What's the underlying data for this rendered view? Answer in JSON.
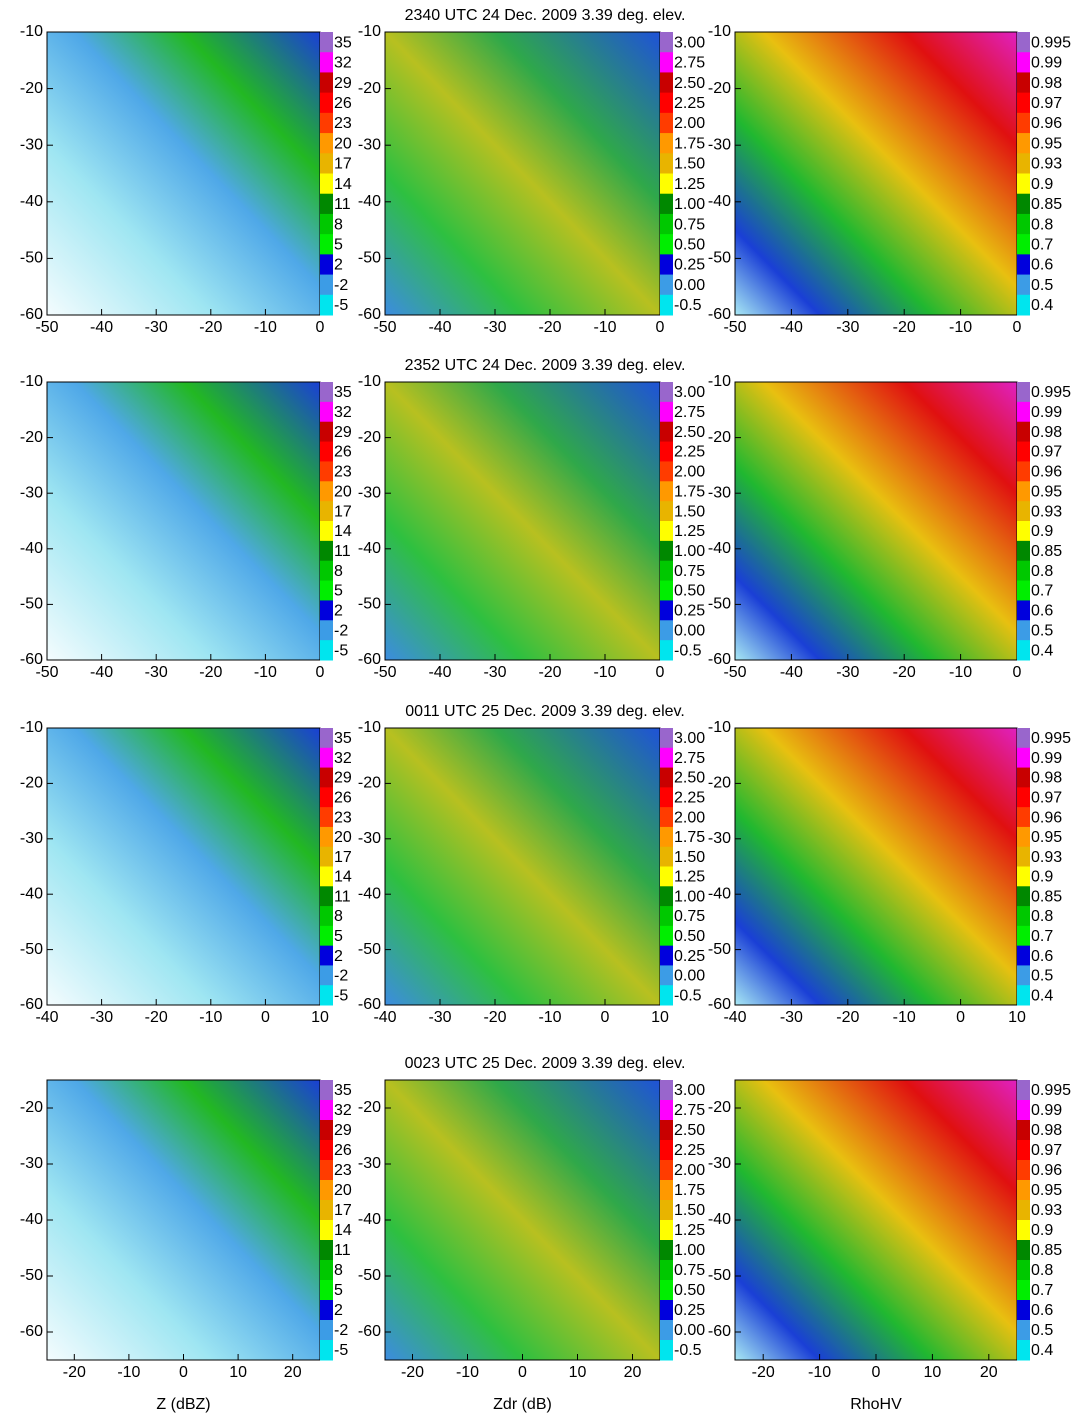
{
  "chart_data": [
    {
      "type": "heatmap",
      "xlim": [
        -50,
        0
      ],
      "xticks": [
        -50,
        -40,
        -30,
        -20,
        -10,
        0
      ],
      "ylim": [
        -60,
        -10
      ],
      "yticks": [
        -60,
        -50,
        -40,
        -30,
        -20,
        -10
      ],
      "colorbar": {
        "ticks": [
          35,
          32,
          29,
          26,
          23,
          20,
          17,
          14,
          11,
          8,
          5,
          2,
          -2,
          -5
        ],
        "colors": [
          "#9966cc",
          "#ff00ff",
          "#c80000",
          "#ff0000",
          "#ff3c00",
          "#ff9900",
          "#e8b400",
          "#ffff00",
          "#008800",
          "#00c800",
          "#00ee00",
          "#0000dd",
          "#3c9ce6",
          "#00e5ee"
        ]
      }
    },
    {
      "type": "heatmap",
      "title": "2340 UTC 24 Dec. 2009 3.39 deg. elev.",
      "xlim": [
        -50,
        0
      ],
      "xticks": [
        -50,
        -40,
        -30,
        -20,
        -10,
        0
      ],
      "ylim": [
        -60,
        -10
      ],
      "yticks": [
        -60,
        -50,
        -40,
        -30,
        -20,
        -10
      ],
      "colorbar": {
        "ticks": [
          {
            "value": 3,
            "label": "3.00"
          },
          2.75,
          {
            "value": 2.5,
            "label": "2.50"
          },
          2.25,
          {
            "value": 2,
            "label": "2.00"
          },
          1.75,
          {
            "value": 1.5,
            "label": "1.50"
          },
          1.25,
          {
            "value": 1,
            "label": "1.00"
          },
          0.75,
          {
            "value": 0.5,
            "label": "0.50"
          },
          0.25,
          {
            "value": 0,
            "label": "0.00"
          },
          -0.5
        ],
        "colors": [
          "#9966cc",
          "#ff00ff",
          "#c80000",
          "#ff0000",
          "#ff3c00",
          "#ff9900",
          "#e8b400",
          "#ffff00",
          "#008800",
          "#00c800",
          "#00ee00",
          "#0000dd",
          "#3c9ce6",
          "#00e5ee"
        ]
      }
    },
    {
      "type": "heatmap",
      "xlim": [
        -50,
        0
      ],
      "xticks": [
        -50,
        -40,
        -30,
        -20,
        -10,
        0
      ],
      "ylim": [
        -60,
        -10
      ],
      "yticks": [
        -60,
        -50,
        -40,
        -30,
        -20,
        -10
      ],
      "colorbar": {
        "ticks": [
          0.995,
          0.99,
          0.98,
          0.97,
          0.96,
          0.95,
          0.93,
          0.9,
          0.85,
          0.8,
          0.7,
          0.6,
          0.5,
          0.4
        ],
        "colors": [
          "#9966cc",
          "#ff00ff",
          "#c80000",
          "#ff0000",
          "#ff3c00",
          "#ff9900",
          "#e8b400",
          "#ffff00",
          "#008800",
          "#00c800",
          "#00ee00",
          "#0000dd",
          "#3c9ce6",
          "#00e5ee"
        ]
      }
    },
    {
      "type": "heatmap",
      "xlim": [
        -50,
        0
      ],
      "xticks": [
        -50,
        -40,
        -30,
        -20,
        -10,
        0
      ],
      "ylim": [
        -60,
        -10
      ],
      "yticks": [
        -60,
        -50,
        -40,
        -30,
        -20,
        -10
      ],
      "colorbar": {
        "ticks": [
          35,
          32,
          29,
          26,
          23,
          20,
          17,
          14,
          11,
          8,
          5,
          2,
          -2,
          -5
        ],
        "colors": [
          "#9966cc",
          "#ff00ff",
          "#c80000",
          "#ff0000",
          "#ff3c00",
          "#ff9900",
          "#e8b400",
          "#ffff00",
          "#008800",
          "#00c800",
          "#00ee00",
          "#0000dd",
          "#3c9ce6",
          "#00e5ee"
        ]
      }
    },
    {
      "type": "heatmap",
      "title": "2352 UTC 24 Dec. 2009 3.39 deg. elev.",
      "xlim": [
        -50,
        0
      ],
      "xticks": [
        -50,
        -40,
        -30,
        -20,
        -10,
        0
      ],
      "ylim": [
        -60,
        -10
      ],
      "yticks": [
        -60,
        -50,
        -40,
        -30,
        -20,
        -10
      ],
      "colorbar": {
        "ticks": [
          {
            "value": 3,
            "label": "3.00"
          },
          2.75,
          {
            "value": 2.5,
            "label": "2.50"
          },
          2.25,
          {
            "value": 2,
            "label": "2.00"
          },
          1.75,
          {
            "value": 1.5,
            "label": "1.50"
          },
          1.25,
          {
            "value": 1,
            "label": "1.00"
          },
          0.75,
          {
            "value": 0.5,
            "label": "0.50"
          },
          0.25,
          {
            "value": 0,
            "label": "0.00"
          },
          -0.5
        ],
        "colors": [
          "#9966cc",
          "#ff00ff",
          "#c80000",
          "#ff0000",
          "#ff3c00",
          "#ff9900",
          "#e8b400",
          "#ffff00",
          "#008800",
          "#00c800",
          "#00ee00",
          "#0000dd",
          "#3c9ce6",
          "#00e5ee"
        ]
      }
    },
    {
      "type": "heatmap",
      "xlim": [
        -50,
        0
      ],
      "xticks": [
        -50,
        -40,
        -30,
        -20,
        -10,
        0
      ],
      "ylim": [
        -60,
        -10
      ],
      "yticks": [
        -60,
        -50,
        -40,
        -30,
        -20,
        -10
      ],
      "colorbar": {
        "ticks": [
          0.995,
          0.99,
          0.98,
          0.97,
          0.96,
          0.95,
          0.93,
          0.9,
          0.85,
          0.8,
          0.7,
          0.6,
          0.5,
          0.4
        ],
        "colors": [
          "#9966cc",
          "#ff00ff",
          "#c80000",
          "#ff0000",
          "#ff3c00",
          "#ff9900",
          "#e8b400",
          "#ffff00",
          "#008800",
          "#00c800",
          "#00ee00",
          "#0000dd",
          "#3c9ce6",
          "#00e5ee"
        ]
      }
    },
    {
      "type": "heatmap",
      "xlim": [
        -40,
        10
      ],
      "xticks": [
        -40,
        -30,
        -20,
        -10,
        0,
        10
      ],
      "ylim": [
        -60,
        -10
      ],
      "yticks": [
        -60,
        -50,
        -40,
        -30,
        -20,
        -10
      ],
      "colorbar": {
        "ticks": [
          35,
          32,
          29,
          26,
          23,
          20,
          17,
          14,
          11,
          8,
          5,
          2,
          -2,
          -5
        ],
        "colors": [
          "#9966cc",
          "#ff00ff",
          "#c80000",
          "#ff0000",
          "#ff3c00",
          "#ff9900",
          "#e8b400",
          "#ffff00",
          "#008800",
          "#00c800",
          "#00ee00",
          "#0000dd",
          "#3c9ce6",
          "#00e5ee"
        ]
      }
    },
    {
      "type": "heatmap",
      "title": "0011 UTC 25 Dec. 2009 3.39 deg. elev.",
      "xlim": [
        -40,
        10
      ],
      "xticks": [
        -40,
        -30,
        -20,
        -10,
        0,
        10
      ],
      "ylim": [
        -60,
        -10
      ],
      "yticks": [
        -60,
        -50,
        -40,
        -30,
        -20,
        -10
      ],
      "colorbar": {
        "ticks": [
          {
            "value": 3,
            "label": "3.00"
          },
          2.75,
          {
            "value": 2.5,
            "label": "2.50"
          },
          2.25,
          {
            "value": 2,
            "label": "2.00"
          },
          1.75,
          {
            "value": 1.5,
            "label": "1.50"
          },
          1.25,
          {
            "value": 1,
            "label": "1.00"
          },
          0.75,
          {
            "value": 0.5,
            "label": "0.50"
          },
          0.25,
          {
            "value": 0,
            "label": "0.00"
          },
          -0.5
        ],
        "colors": [
          "#9966cc",
          "#ff00ff",
          "#c80000",
          "#ff0000",
          "#ff3c00",
          "#ff9900",
          "#e8b400",
          "#ffff00",
          "#008800",
          "#00c800",
          "#00ee00",
          "#0000dd",
          "#3c9ce6",
          "#00e5ee"
        ]
      }
    },
    {
      "type": "heatmap",
      "xlim": [
        -40,
        10
      ],
      "xticks": [
        -40,
        -30,
        -20,
        -10,
        0,
        10
      ],
      "ylim": [
        -60,
        -10
      ],
      "yticks": [
        -60,
        -50,
        -40,
        -30,
        -20,
        -10
      ],
      "colorbar": {
        "ticks": [
          0.995,
          0.99,
          0.98,
          0.97,
          0.96,
          0.95,
          0.93,
          0.9,
          0.85,
          0.8,
          0.7,
          0.6,
          0.5,
          0.4
        ],
        "colors": [
          "#9966cc",
          "#ff00ff",
          "#c80000",
          "#ff0000",
          "#ff3c00",
          "#ff9900",
          "#e8b400",
          "#ffff00",
          "#008800",
          "#00c800",
          "#00ee00",
          "#0000dd",
          "#3c9ce6",
          "#00e5ee"
        ]
      }
    },
    {
      "type": "heatmap",
      "xlabel": "Z (dBZ)",
      "xlim": [
        -25,
        25
      ],
      "xticks": [
        -20,
        -10,
        0,
        10,
        20
      ],
      "ylim": [
        -65,
        -15
      ],
      "yticks": [
        -60,
        -50,
        -40,
        -30,
        -20
      ],
      "colorbar": {
        "ticks": [
          35,
          32,
          29,
          26,
          23,
          20,
          17,
          14,
          11,
          8,
          5,
          2,
          -2,
          -5
        ],
        "colors": [
          "#9966cc",
          "#ff00ff",
          "#c80000",
          "#ff0000",
          "#ff3c00",
          "#ff9900",
          "#e8b400",
          "#ffff00",
          "#008800",
          "#00c800",
          "#00ee00",
          "#0000dd",
          "#3c9ce6",
          "#00e5ee"
        ]
      }
    },
    {
      "type": "heatmap",
      "title": "0023 UTC 25 Dec. 2009 3.39 deg. elev.",
      "xlabel": "Zdr (dB)",
      "xlim": [
        -25,
        25
      ],
      "xticks": [
        -20,
        -10,
        0,
        10,
        20
      ],
      "ylim": [
        -65,
        -15
      ],
      "yticks": [
        -60,
        -50,
        -40,
        -30,
        -20
      ],
      "colorbar": {
        "ticks": [
          {
            "value": 3,
            "label": "3.00"
          },
          2.75,
          {
            "value": 2.5,
            "label": "2.50"
          },
          2.25,
          {
            "value": 2,
            "label": "2.00"
          },
          1.75,
          {
            "value": 1.5,
            "label": "1.50"
          },
          1.25,
          {
            "value": 1,
            "label": "1.00"
          },
          0.75,
          {
            "value": 0.5,
            "label": "0.50"
          },
          0.25,
          {
            "value": 0,
            "label": "0.00"
          },
          -0.5
        ],
        "colors": [
          "#9966cc",
          "#ff00ff",
          "#c80000",
          "#ff0000",
          "#ff3c00",
          "#ff9900",
          "#e8b400",
          "#ffff00",
          "#008800",
          "#00c800",
          "#00ee00",
          "#0000dd",
          "#3c9ce6",
          "#00e5ee"
        ]
      }
    },
    {
      "type": "heatmap",
      "xlabel": "RhoHV",
      "xlim": [
        -25,
        25
      ],
      "xticks": [
        -20,
        -10,
        0,
        10,
        20
      ],
      "ylim": [
        -65,
        -15
      ],
      "yticks": [
        -60,
        -50,
        -40,
        -30,
        -20
      ],
      "colorbar": {
        "ticks": [
          0.995,
          0.99,
          0.98,
          0.97,
          0.96,
          0.95,
          0.93,
          0.9,
          0.85,
          0.8,
          0.7,
          0.6,
          0.5,
          0.4
        ],
        "colors": [
          "#9966cc",
          "#ff00ff",
          "#c80000",
          "#ff0000",
          "#ff3c00",
          "#ff9900",
          "#e8b400",
          "#ffff00",
          "#008800",
          "#00c800",
          "#00ee00",
          "#0000dd",
          "#3c9ce6",
          "#00e5ee"
        ]
      }
    }
  ]
}
